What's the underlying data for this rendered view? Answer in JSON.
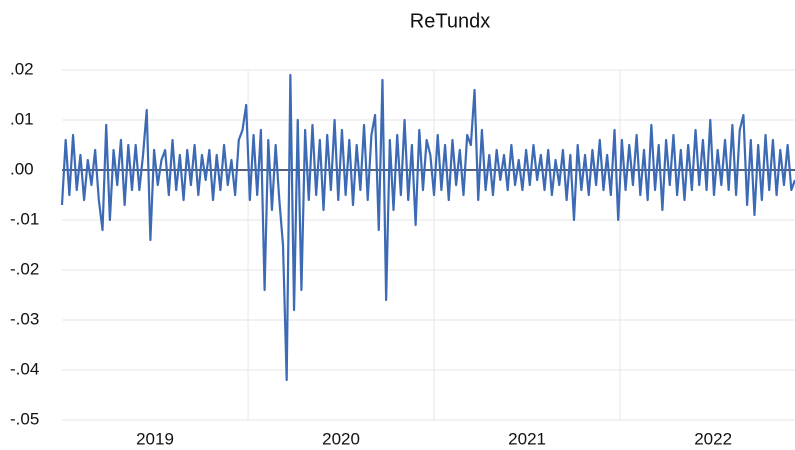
{
  "chart_data": {
    "type": "line",
    "title": "ReTundx",
    "color": "#3d6ab5",
    "xlim": [
      2019,
      2022.94
    ],
    "xticks": [
      {
        "value": 2019.5,
        "label": "2019"
      },
      {
        "value": 2020.5,
        "label": "2020"
      },
      {
        "value": 2021.5,
        "label": "2021"
      },
      {
        "value": 2022.5,
        "label": "2022"
      }
    ],
    "xgrid": [
      2020,
      2021,
      2022
    ],
    "ylim": [
      -0.05,
      0.02
    ],
    "yticks": [
      {
        "value": 0.02,
        "label": ".02"
      },
      {
        "value": 0.01,
        "label": ".01"
      },
      {
        "value": 0,
        "label": ".00"
      },
      {
        "value": -0.01,
        "label": "-.01"
      },
      {
        "value": -0.02,
        "label": "-.02"
      },
      {
        "value": -0.03,
        "label": "-.03"
      },
      {
        "value": -0.04,
        "label": "-.04"
      },
      {
        "value": -0.05,
        "label": "-.05"
      }
    ],
    "grid": true,
    "values": [
      -0.007,
      0.006,
      -0.005,
      0.007,
      -0.004,
      0.003,
      -0.006,
      0.002,
      -0.003,
      0.004,
      -0.006,
      -0.012,
      0.009,
      -0.01,
      0.004,
      -0.003,
      0.006,
      -0.007,
      0.005,
      -0.004,
      0.005,
      -0.004,
      0.003,
      0.012,
      -0.014,
      0.004,
      -0.003,
      0.002,
      0.004,
      -0.005,
      0.006,
      -0.004,
      0.003,
      -0.006,
      0.004,
      -0.003,
      0.005,
      -0.005,
      0.003,
      -0.002,
      0.004,
      -0.006,
      0.003,
      -0.004,
      0.005,
      -0.003,
      0.002,
      -0.005,
      0.006,
      0.008,
      0.013,
      -0.006,
      0.007,
      -0.005,
      0.008,
      -0.024,
      0.006,
      -0.008,
      0.005,
      -0.006,
      -0.015,
      -0.042,
      0.019,
      -0.028,
      0.01,
      -0.024,
      0.008,
      -0.006,
      0.009,
      -0.005,
      0.006,
      -0.008,
      0.007,
      -0.004,
      0.01,
      -0.006,
      0.008,
      -0.005,
      0.006,
      -0.007,
      0.005,
      -0.004,
      0.009,
      -0.006,
      0.007,
      0.011,
      -0.012,
      0.018,
      -0.026,
      0.006,
      -0.008,
      0.007,
      -0.005,
      0.01,
      -0.006,
      0.005,
      -0.011,
      0.008,
      -0.004,
      0.006,
      0.003,
      -0.005,
      0.007,
      -0.004,
      0.005,
      -0.006,
      0.006,
      -0.003,
      0.004,
      -0.005,
      0.007,
      0.005,
      0.016,
      -0.006,
      0.008,
      -0.004,
      0.003,
      -0.005,
      0.004,
      -0.002,
      0.003,
      -0.004,
      0.005,
      -0.003,
      0.002,
      -0.004,
      0.004,
      -0.003,
      0.005,
      -0.002,
      0.003,
      -0.004,
      0.004,
      -0.005,
      0.002,
      -0.003,
      0.004,
      -0.006,
      0.003,
      -0.01,
      0.005,
      -0.004,
      0.003,
      -0.005,
      0.004,
      -0.003,
      0.006,
      -0.004,
      0.003,
      -0.005,
      0.008,
      -0.01,
      0.006,
      -0.004,
      0.005,
      -0.003,
      0.007,
      -0.005,
      0.004,
      -0.006,
      0.009,
      -0.004,
      0.005,
      -0.008,
      0.006,
      -0.003,
      0.007,
      -0.005,
      0.004,
      -0.006,
      0.005,
      -0.004,
      0.008,
      -0.003,
      0.006,
      -0.004,
      0.01,
      -0.005,
      0.004,
      -0.003,
      0.006,
      -0.004,
      0.009,
      -0.005,
      0.008,
      0.011,
      -0.007,
      0.006,
      -0.009,
      0.005,
      -0.006,
      0.007,
      -0.004,
      0.006,
      -0.005,
      0.004,
      -0.003,
      0.005,
      -0.004,
      -0.002
    ]
  }
}
